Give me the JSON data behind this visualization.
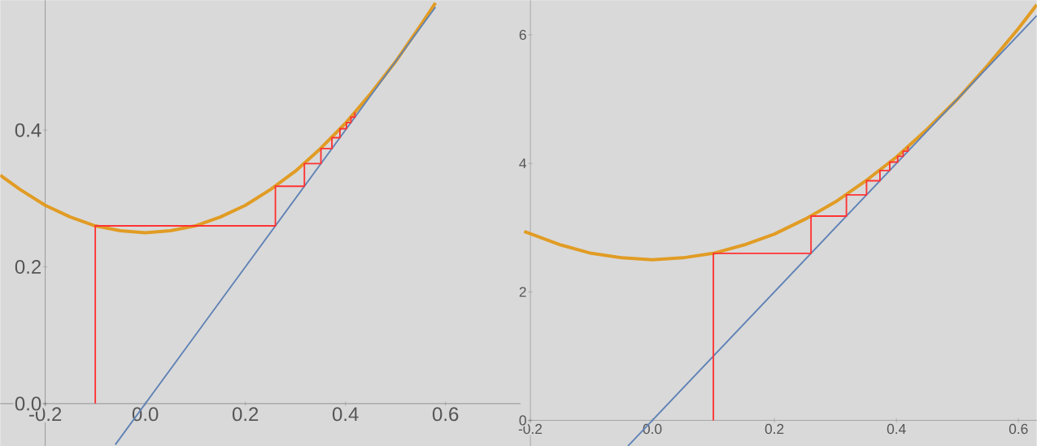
{
  "chart_data": [
    {
      "type": "line",
      "xlim": [
        -0.29,
        0.75
      ],
      "ylim": [
        -0.062,
        0.59
      ],
      "xticks": [
        -0.2,
        {
          "value": 0,
          "label": "0.0"
        },
        0.2,
        0.4,
        0.6
      ],
      "yticks": [
        {
          "value": 0,
          "label": "0.0"
        },
        0.2,
        0.4
      ],
      "series": [
        {
          "color": "#e19c24",
          "x": [
            -0.29,
            -0.25,
            -0.2,
            -0.15,
            -0.1,
            -0.05,
            0,
            0.05,
            0.1,
            0.15,
            0.2,
            0.25,
            0.3,
            0.35,
            0.4,
            0.45,
            0.5,
            0.55,
            0.58
          ],
          "values": [
            0.334,
            0.313,
            0.29,
            0.273,
            0.26,
            0.253,
            0.25,
            0.253,
            0.26,
            0.273,
            0.29,
            0.313,
            0.34,
            0.373,
            0.41,
            0.453,
            0.5,
            0.553,
            0.586
          ]
        },
        {
          "color": "#5e81b5",
          "x": [
            -0.06,
            0.58
          ],
          "values": [
            -0.06,
            0.58
          ]
        },
        {
          "color": "#ff3333",
          "x": [
            -0.1,
            -0.1,
            0.26,
            0.26,
            0.318,
            0.318,
            0.351,
            0.351,
            0.373,
            0.373,
            0.389,
            0.389,
            0.402,
            0.402,
            0.411,
            0.411,
            0.419,
            0.419
          ],
          "values": [
            0,
            0.26,
            0.26,
            0.318,
            0.318,
            0.351,
            0.351,
            0.373,
            0.373,
            0.389,
            0.389,
            0.402,
            0.402,
            0.411,
            0.411,
            0.419,
            0.419,
            0.426
          ]
        }
      ]
    },
    {
      "type": "line",
      "xlim": [
        -0.212,
        0.63
      ],
      "ylim": [
        -0.4,
        6.54
      ],
      "xticks": [
        -0.2,
        {
          "value": 0,
          "label": "0.0"
        },
        0.2,
        0.4,
        0.6
      ],
      "yticks": [
        0,
        2,
        4,
        6
      ],
      "series": [
        {
          "color": "#e19c24",
          "x": [
            -0.21,
            -0.15,
            -0.1,
            -0.05,
            0,
            0.05,
            0.1,
            0.15,
            0.2,
            0.25,
            0.3,
            0.35,
            0.4,
            0.45,
            0.5,
            0.55,
            0.6,
            0.63
          ],
          "values": [
            2.94,
            2.73,
            2.6,
            2.53,
            2.5,
            2.53,
            2.6,
            2.73,
            2.9,
            3.13,
            3.4,
            3.73,
            4.1,
            4.53,
            5.0,
            5.53,
            6.1,
            6.47
          ]
        },
        {
          "color": "#5e81b5",
          "x": [
            -0.04,
            0.63
          ],
          "values": [
            -0.4,
            6.3
          ]
        },
        {
          "color": "#ff3333",
          "x": [
            0.1,
            0.1,
            0.26,
            0.26,
            0.318,
            0.318,
            0.351,
            0.351,
            0.373,
            0.373,
            0.389,
            0.389,
            0.402,
            0.402,
            0.411,
            0.411,
            0.419,
            0.419
          ],
          "values": [
            0,
            2.6,
            2.6,
            3.18,
            3.18,
            3.51,
            3.51,
            3.73,
            3.73,
            3.89,
            3.89,
            4.02,
            4.02,
            4.11,
            4.11,
            4.19,
            4.19,
            4.26
          ]
        }
      ]
    }
  ]
}
